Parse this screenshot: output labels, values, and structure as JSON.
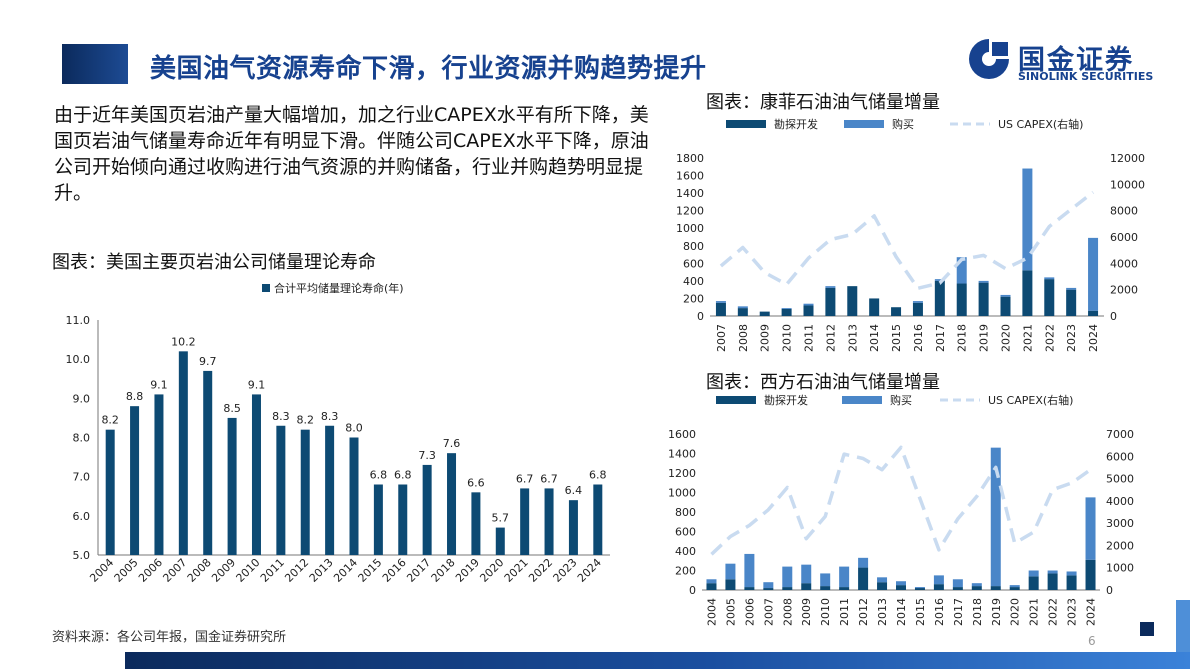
{
  "title": "美国油气资源寿命下滑，行业资源并购趋势提升",
  "logo": {
    "cn": "国金证券",
    "en": "SINOLINK SECURITIES"
  },
  "intro": "由于近年美国页岩油产量大幅增加，加之行业CAPEX水平有所下降，美国页岩油气储量寿命近年有明显下滑。伴随公司CAPEX水平下降，原油公司开始倾向通过收购进行油气资源的并购储备，行业并购趋势明显提升。",
  "source": "资料来源：各公司年报，国金证券研究所",
  "page_number": "6",
  "colors": {
    "dark_navy": "#0d4a73",
    "mid_blue": "#4a86c8",
    "light_blue": "#c9dbf0",
    "title_blue": "#17428f"
  },
  "chart_data": [
    {
      "type": "bar",
      "title": "图表：美国主要页岩油公司储量理论寿命",
      "legend": [
        "合计平均储量理论寿命(年)"
      ],
      "categories": [
        "2004",
        "2005",
        "2006",
        "2007",
        "2008",
        "2009",
        "2010",
        "2011",
        "2012",
        "2013",
        "2014",
        "2015",
        "2016",
        "2017",
        "2018",
        "2019",
        "2020",
        "2021",
        "2022",
        "2023",
        "2024"
      ],
      "values": [
        8.2,
        8.8,
        9.1,
        10.2,
        9.7,
        8.5,
        9.1,
        8.3,
        8.2,
        8.3,
        8.0,
        6.8,
        6.8,
        7.3,
        7.6,
        6.6,
        5.7,
        6.7,
        6.7,
        6.4,
        6.8
      ],
      "value_labels": [
        "8.2",
        "8.8",
        "9.1",
        "10.2",
        "9.7",
        "8.5",
        "9.1",
        "8.3",
        "8.2",
        "8.3",
        "8.0",
        "6.8",
        "6.8",
        "7.3",
        "7.6",
        "6.6",
        "5.7",
        "6.7",
        "6.7",
        "6.4",
        "6.8"
      ],
      "ylim": [
        5.0,
        11.0
      ],
      "yticks": [
        "5.0",
        "6.0",
        "7.0",
        "8.0",
        "9.0",
        "10.0",
        "11.0"
      ],
      "legend_position": "top"
    },
    {
      "type": "bar",
      "title": "图表：康菲石油油气储量增量",
      "legend": [
        "勘探开发",
        "购买",
        "US CAPEX(右轴)"
      ],
      "categories": [
        "2007",
        "2008",
        "2009",
        "2010",
        "2011",
        "2012",
        "2013",
        "2014",
        "2015",
        "2016",
        "2017",
        "2018",
        "2019",
        "2020",
        "2021",
        "2022",
        "2023",
        "2024"
      ],
      "series": [
        {
          "name": "勘探开发",
          "values": [
            150,
            90,
            50,
            80,
            120,
            320,
            340,
            200,
            100,
            150,
            400,
            370,
            380,
            220,
            520,
            420,
            300,
            60
          ]
        },
        {
          "name": "购买",
          "values": [
            20,
            20,
            0,
            10,
            20,
            20,
            0,
            0,
            0,
            20,
            20,
            300,
            20,
            20,
            1160,
            20,
            20,
            830
          ]
        },
        {
          "name": "US CAPEX(右轴)",
          "values": [
            3800,
            5200,
            3300,
            2400,
            4400,
            5800,
            6200,
            7600,
            4500,
            2100,
            2500,
            4300,
            4600,
            3600,
            4400,
            6800,
            8100,
            9400
          ]
        }
      ],
      "ylim": [
        0,
        1800
      ],
      "yticks": [
        "0",
        "200",
        "400",
        "600",
        "800",
        "1000",
        "1200",
        "1400",
        "1600",
        "1800"
      ],
      "y2lim": [
        0,
        12000
      ],
      "y2ticks": [
        "0",
        "2000",
        "4000",
        "6000",
        "8000",
        "10000",
        "12000"
      ],
      "legend_position": "top"
    },
    {
      "type": "bar",
      "title": "图表：西方石油油气储量增量",
      "legend": [
        "勘探开发",
        "购买",
        "US CAPEX(右轴)"
      ],
      "categories": [
        "2004",
        "2005",
        "2006",
        "2007",
        "2008",
        "2009",
        "2010",
        "2011",
        "2012",
        "2013",
        "2014",
        "2015",
        "2016",
        "2017",
        "2018",
        "2019",
        "2020",
        "2021",
        "2022",
        "2023",
        "2024"
      ],
      "series": [
        {
          "name": "勘探开发",
          "values": [
            70,
            110,
            30,
            20,
            30,
            70,
            40,
            30,
            230,
            80,
            50,
            20,
            60,
            30,
            40,
            40,
            30,
            140,
            170,
            150,
            310
          ]
        },
        {
          "name": "购买",
          "values": [
            40,
            160,
            340,
            60,
            210,
            190,
            130,
            210,
            100,
            50,
            40,
            10,
            90,
            80,
            30,
            1420,
            20,
            60,
            30,
            40,
            640
          ]
        },
        {
          "name": "US CAPEX(右轴)",
          "values": [
            1600,
            2400,
            2900,
            3600,
            4600,
            2300,
            3300,
            6100,
            5900,
            5400,
            6400,
            4100,
            1800,
            3200,
            4200,
            5500,
            2100,
            2600,
            4500,
            4800,
            5400
          ]
        }
      ],
      "ylim": [
        0,
        1600
      ],
      "yticks": [
        "0",
        "200",
        "400",
        "600",
        "800",
        "1000",
        "1200",
        "1400",
        "1600"
      ],
      "y2lim": [
        0,
        7000
      ],
      "y2ticks": [
        "0",
        "1000",
        "2000",
        "3000",
        "4000",
        "5000",
        "6000",
        "7000"
      ],
      "legend_position": "top"
    }
  ]
}
